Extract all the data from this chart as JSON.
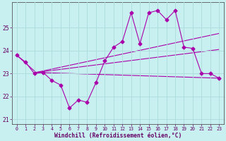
{
  "xlabel": "Windchill (Refroidissement éolien,°C)",
  "bg_color": "#c8f0f0",
  "line_color": "#aa00aa",
  "grid_color": "#b0dede",
  "xlim": [
    -0.5,
    23.5
  ],
  "ylim": [
    20.8,
    26.1
  ],
  "yticks": [
    21,
    22,
    23,
    24,
    25
  ],
  "xticks": [
    0,
    1,
    2,
    3,
    4,
    5,
    6,
    7,
    8,
    9,
    10,
    11,
    12,
    13,
    14,
    15,
    16,
    17,
    18,
    19,
    20,
    21,
    22,
    23
  ],
  "line_main": {
    "x": [
      0,
      1,
      2,
      3,
      4,
      5,
      6,
      7,
      8,
      9,
      10,
      11,
      12,
      13,
      14,
      15,
      16,
      17,
      18,
      19,
      20,
      21,
      22,
      23
    ],
    "y": [
      23.8,
      23.5,
      23.0,
      23.05,
      22.7,
      22.5,
      21.5,
      21.85,
      21.75,
      22.6,
      23.55,
      24.15,
      24.4,
      25.65,
      24.3,
      25.65,
      25.75,
      25.35,
      25.75,
      24.15,
      24.1,
      23.0,
      23.0,
      22.8
    ]
  },
  "line_top": {
    "x": [
      2.2,
      23
    ],
    "y": [
      23.05,
      24.75
    ]
  },
  "line_mid": {
    "x": [
      2.2,
      23
    ],
    "y": [
      23.05,
      24.05
    ]
  },
  "line_bot": {
    "x": [
      0,
      2.2,
      23
    ],
    "y": [
      23.8,
      23.05,
      22.8
    ]
  }
}
